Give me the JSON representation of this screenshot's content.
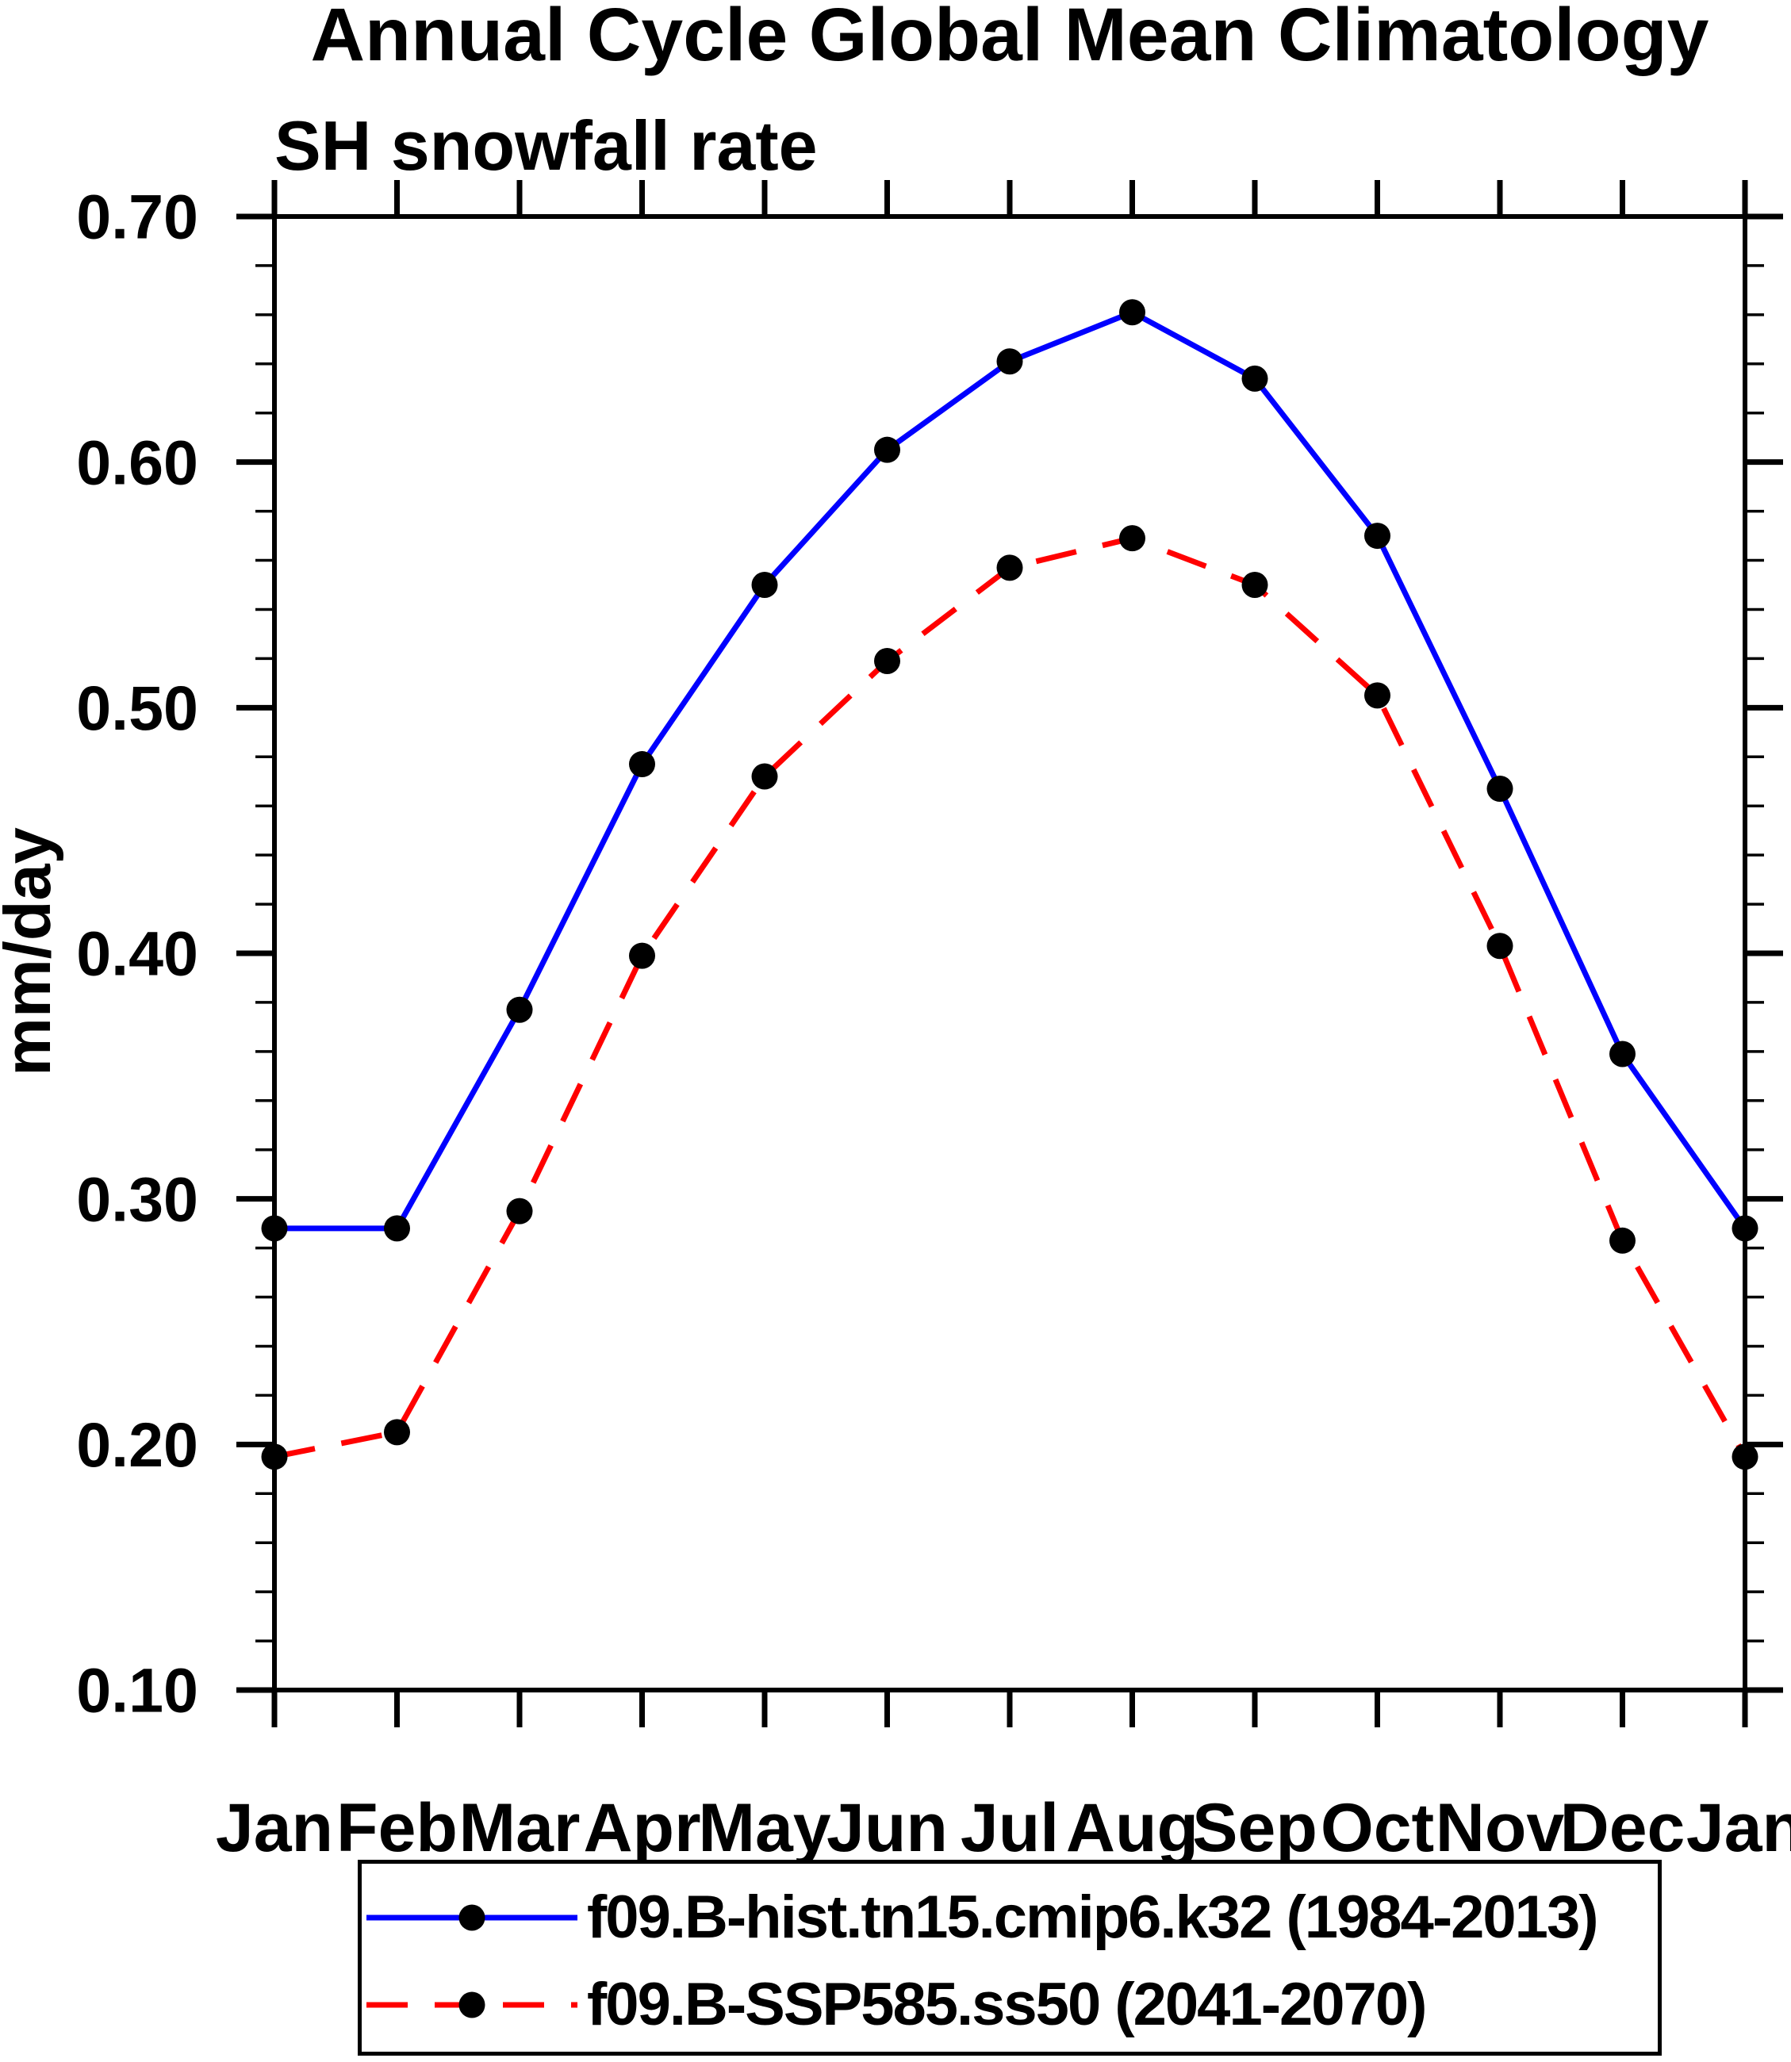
{
  "chart_data": {
    "type": "line",
    "title": "Annual Cycle Global Mean Climatology",
    "subtitle": "SH snowfall rate",
    "ylabel": "mm/day",
    "categories": [
      "Jan",
      "Feb",
      "Mar",
      "Apr",
      "May",
      "Jun",
      "Jul",
      "Aug",
      "Sep",
      "Oct",
      "Nov",
      "Dec",
      "Jan"
    ],
    "ylim": [
      0.1,
      0.7
    ],
    "y_major_step": 0.1,
    "y_minor_step": 0.02,
    "grid": false,
    "legend_position": "bottom",
    "axis_color": "#000000",
    "marker_color": "#000000",
    "series": [
      {
        "name": "f09.B-hist.tn15.cmip6.k32 (1984-2013)",
        "color": "#0000ff",
        "line_style": "solid",
        "marker": "circle",
        "values": [
          0.288,
          0.288,
          0.377,
          0.477,
          0.55,
          0.605,
          0.641,
          0.661,
          0.634,
          0.57,
          0.467,
          0.359,
          0.288
        ]
      },
      {
        "name": "f09.B-SSP585.ss50 (2041-2070)",
        "color": "#ff0000",
        "line_style": "dashed",
        "marker": "circle",
        "values": [
          0.195,
          0.205,
          0.295,
          0.399,
          0.472,
          0.519,
          0.557,
          0.569,
          0.55,
          0.505,
          0.403,
          0.283,
          0.195
        ]
      }
    ]
  }
}
